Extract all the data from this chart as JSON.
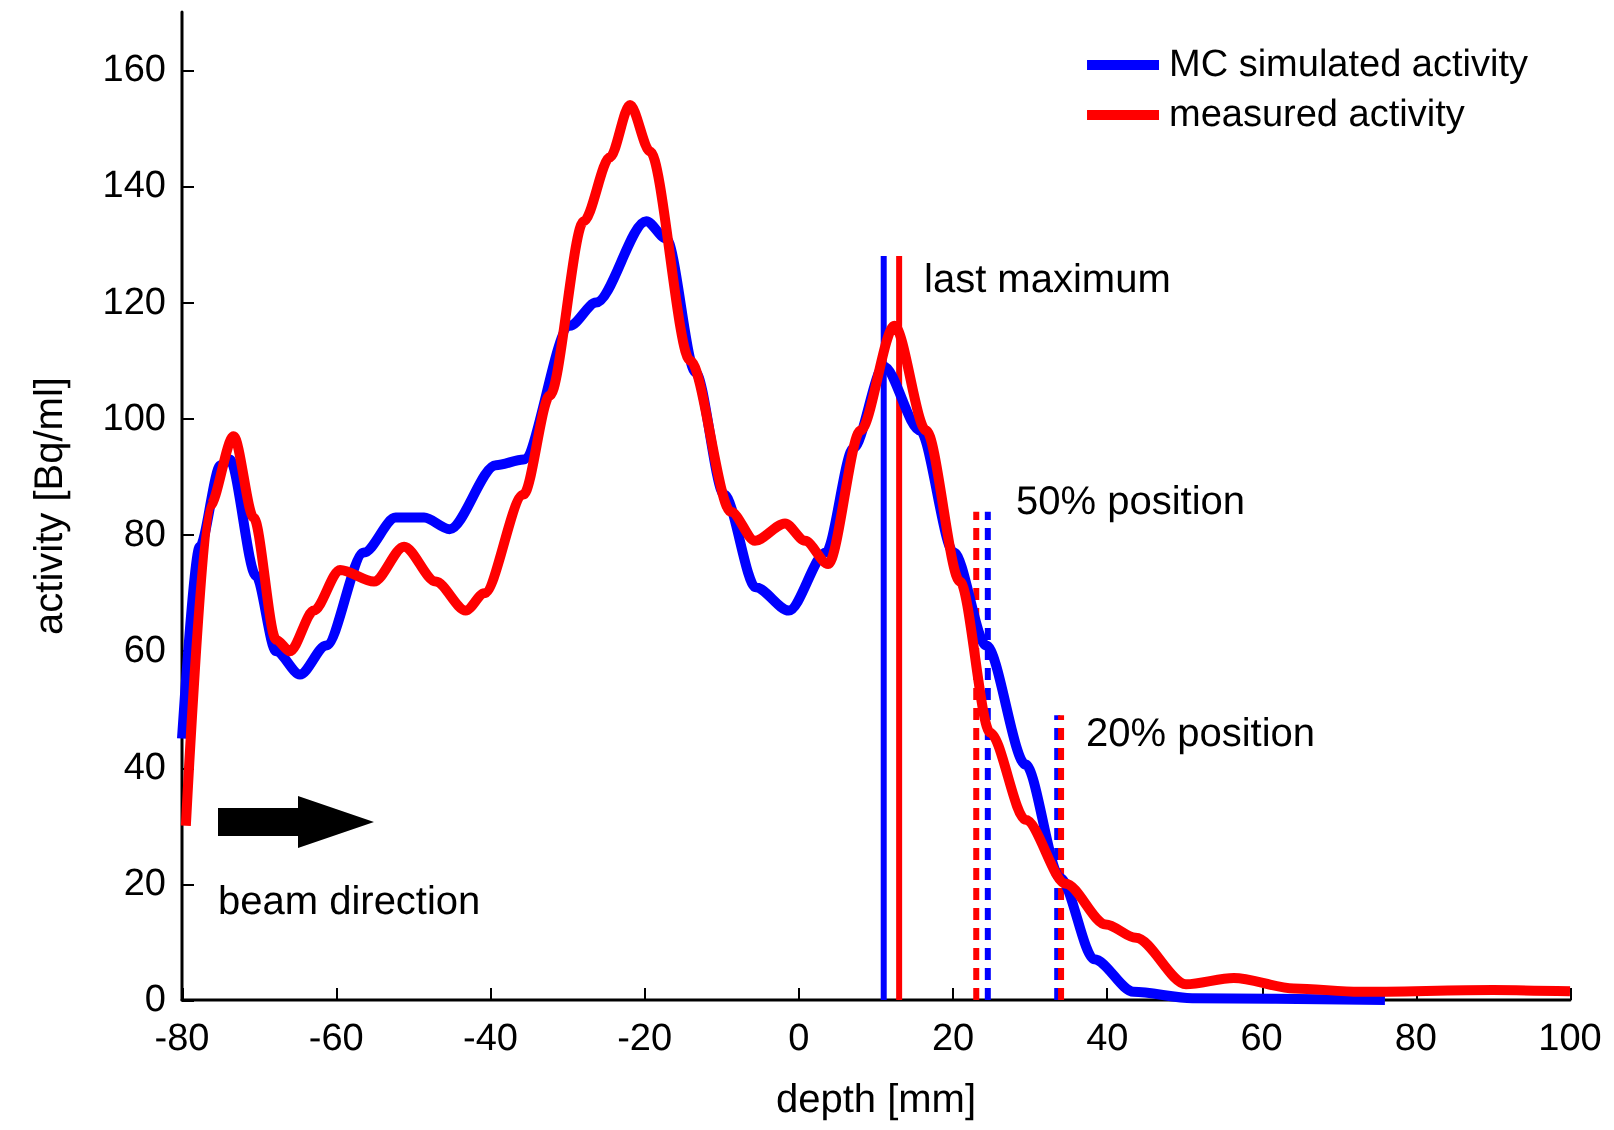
{
  "chart_data": {
    "type": "line",
    "xlabel": "depth [mm]",
    "ylabel": "activity [Bq/ml]",
    "xlim": [
      -80,
      100
    ],
    "xticks": [
      -80,
      -60,
      -40,
      -20,
      0,
      20,
      40,
      60,
      80,
      100
    ],
    "ylim": [
      0,
      170
    ],
    "yticks": [
      0,
      20,
      40,
      60,
      80,
      100,
      120,
      140,
      160
    ],
    "grid": false,
    "legend": "top right",
    "marker": "none",
    "series": [
      {
        "name": "MC simulated activity",
        "color": "#0000ff",
        "x": [
          -80,
          -77.7,
          -75,
          -73.8,
          -70.4,
          -67.8,
          -64.7,
          -61.3,
          -56.4,
          -52.3,
          -48.6,
          -45.3,
          -39.3,
          -35.7,
          -29.7,
          -26.3,
          -19.8,
          -17.2,
          -13.4,
          -9.7,
          -5.6,
          -1.3,
          3.5,
          7.1,
          11,
          15.7,
          20.1,
          24.3,
          29.4,
          33.9,
          38.3,
          43.4,
          51,
          76
        ],
        "values": [
          45,
          78,
          92,
          93,
          73,
          60,
          56,
          61,
          77,
          83,
          83,
          81,
          92,
          93,
          116,
          120,
          134,
          131,
          108,
          87,
          71,
          67,
          77,
          95,
          109,
          98,
          77,
          61,
          40.5,
          21,
          7,
          1.4,
          0.3,
          0
        ]
      },
      {
        "name": "measured activity",
        "color": "#ff0000",
        "x": [
          -79.5,
          -76.4,
          -73.3,
          -70.7,
          -67.8,
          -66,
          -62.9,
          -59.5,
          -55.1,
          -51.2,
          -47.1,
          -43.2,
          -40.8,
          -35.7,
          -32.3,
          -27.9,
          -24.5,
          -21.9,
          -19.3,
          -14.1,
          -8.8,
          -5.7,
          -1.8,
          0.8,
          3.8,
          8,
          12.4,
          16.5,
          20.9,
          24.8,
          29.4,
          34.6,
          39.8,
          43.7,
          50.2,
          56.4,
          64.2,
          72.7,
          90,
          100
        ],
        "values": [
          30,
          85,
          97,
          83,
          62,
          60,
          67,
          74,
          72,
          78,
          72,
          67,
          70,
          87,
          104,
          134,
          145,
          154,
          146,
          110,
          84,
          79,
          82,
          79,
          75,
          98,
          116,
          98,
          72,
          46,
          31,
          20,
          13,
          10.7,
          2.7,
          3.8,
          2,
          1.4,
          1.7,
          1.5
        ]
      },
      {
        "color": "#0000ff",
        "line_style": "solid",
        "x": [
          11,
          11
        ],
        "values": [
          0,
          128
        ]
      },
      {
        "color": "#ff0000",
        "line_style": "solid",
        "x": [
          13,
          13
        ],
        "values": [
          0,
          128
        ]
      },
      {
        "color": "#ff0000",
        "line_style": "dashed",
        "x": [
          23,
          23
        ],
        "values": [
          0,
          84
        ]
      },
      {
        "color": "#0000ff",
        "line_style": "dashed",
        "x": [
          24.5,
          24.5
        ],
        "values": [
          0,
          84
        ]
      },
      {
        "color": "#0000ff",
        "line_style": "dashed",
        "x": [
          33.5,
          33.5
        ],
        "values": [
          0,
          49
        ]
      },
      {
        "color": "#ff0000",
        "line_style": "dashed",
        "x": [
          34,
          34
        ],
        "values": [
          0,
          49
        ]
      }
    ],
    "annotations": [
      "last maximum",
      "50% position",
      "20% position",
      "beam direction"
    ]
  }
}
